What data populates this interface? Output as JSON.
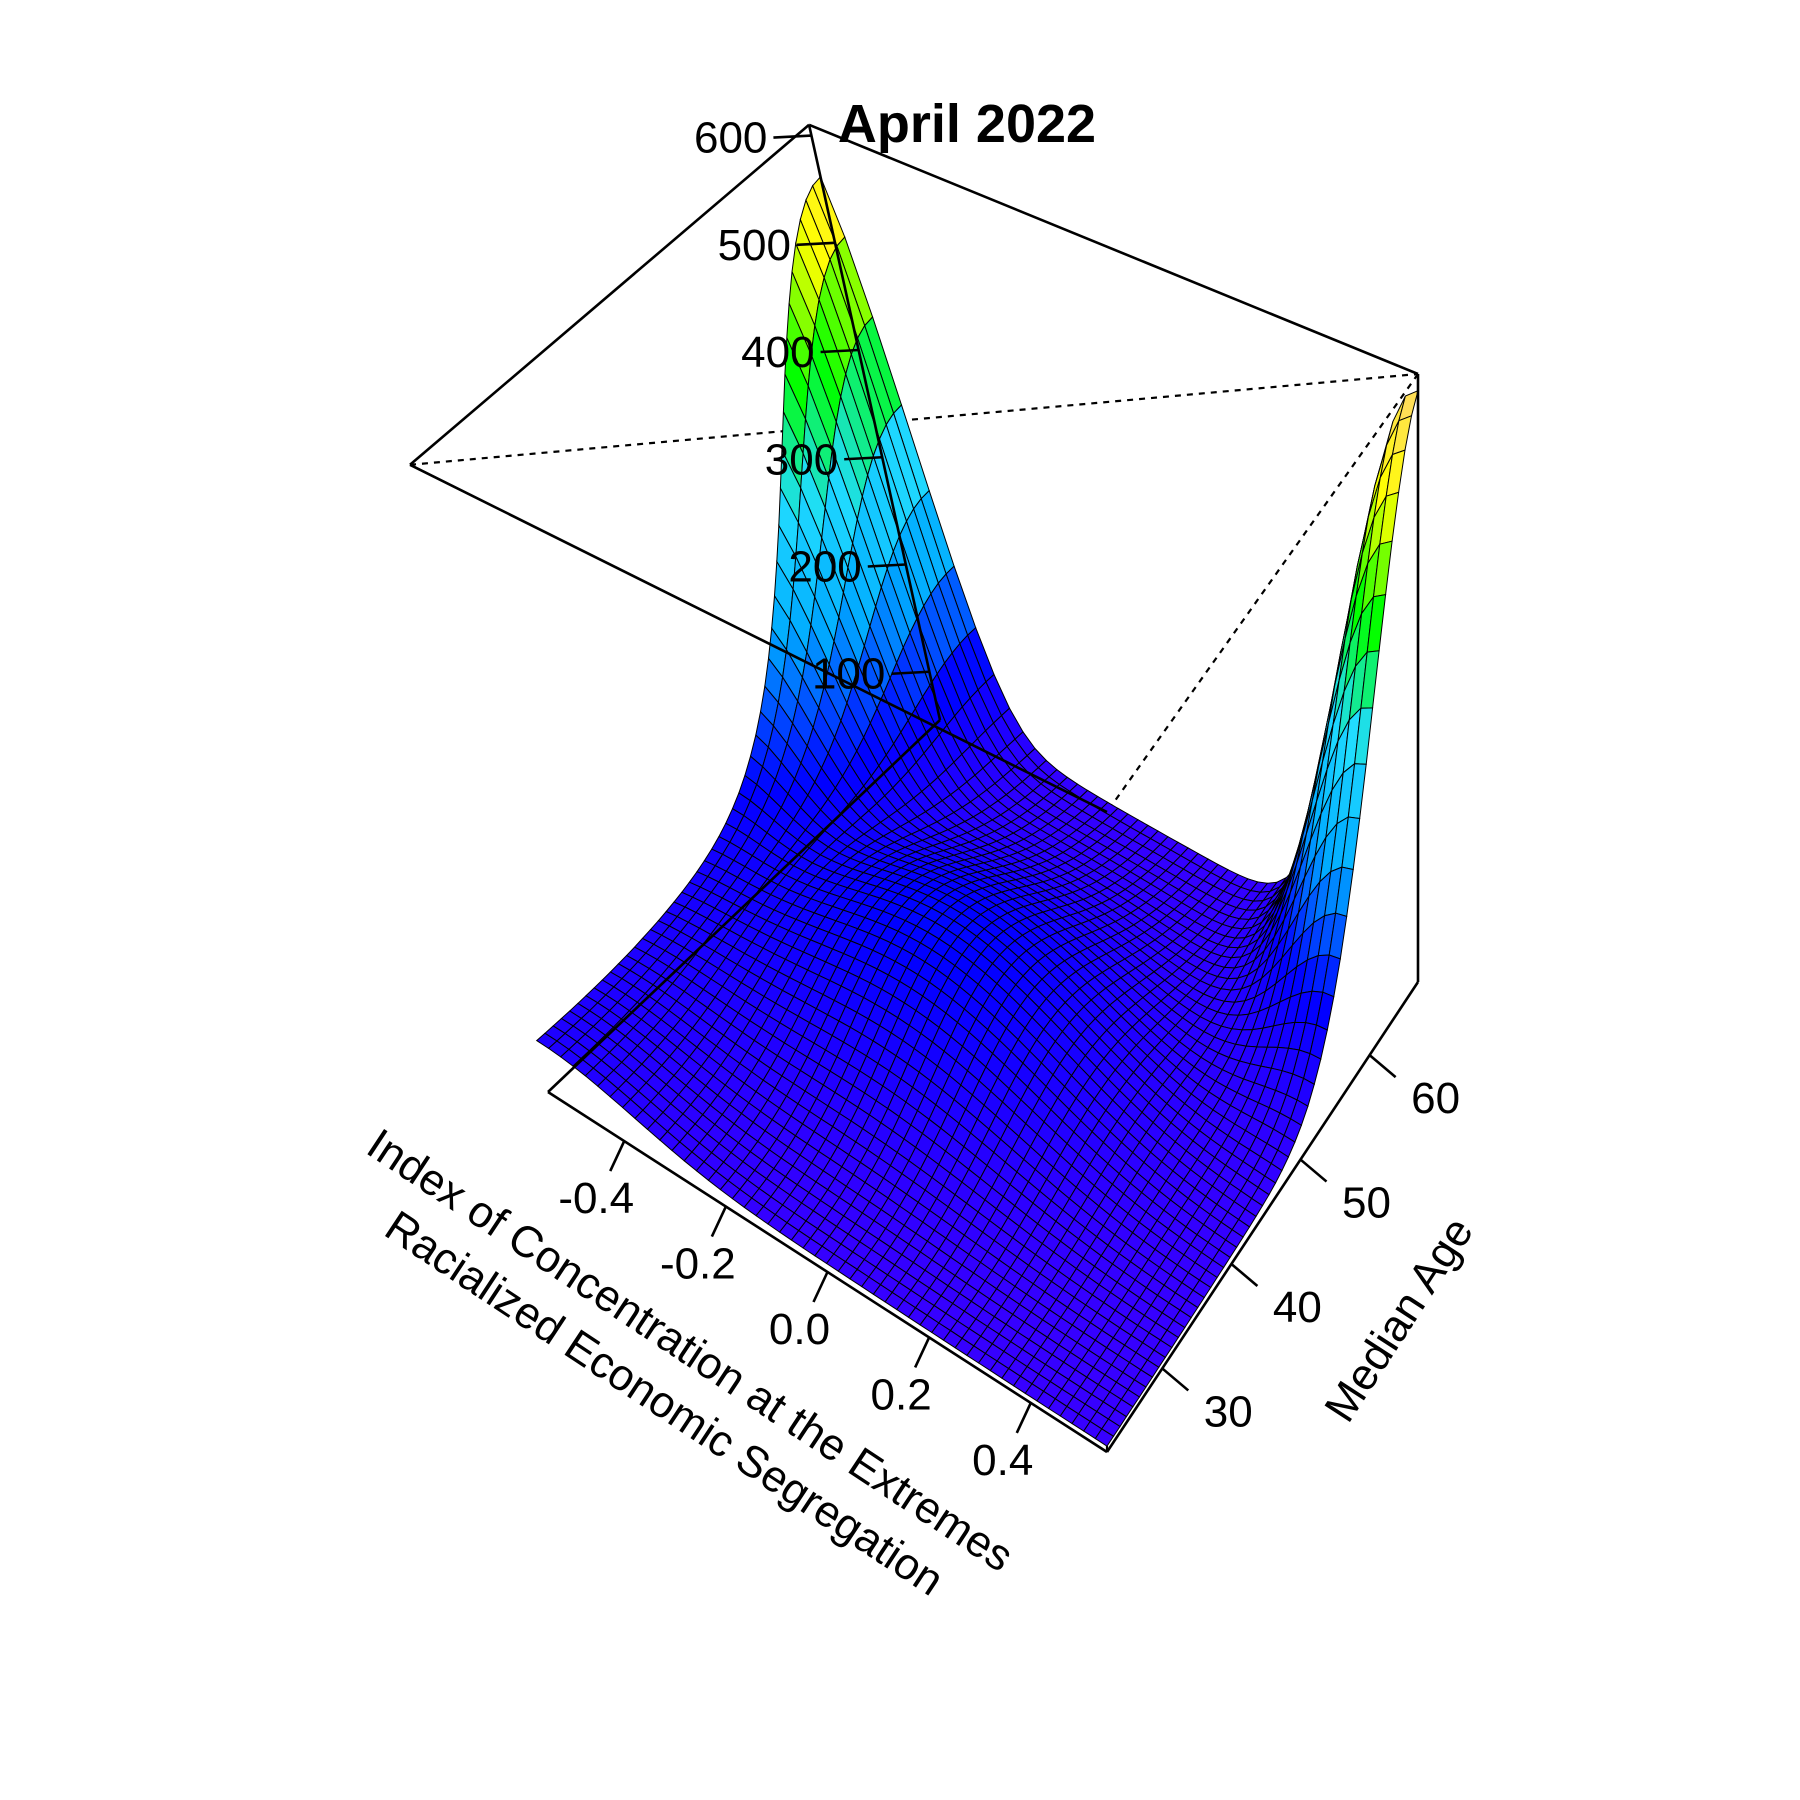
{
  "chart_data": {
    "type": "surface",
    "title": "April 2022",
    "x_axis": {
      "label_line1": "Index of Concentration at the Extremes",
      "label_line2": "Racialized Economic Segregation",
      "range": [
        -0.55,
        0.55
      ],
      "ticks": [
        -0.4,
        -0.2,
        0.0,
        0.2,
        0.4
      ],
      "tick_labels": [
        "-0.4",
        "-0.2",
        "0.0",
        "0.2",
        "0.4"
      ]
    },
    "y_axis": {
      "label": "Median Age",
      "range": [
        22,
        67
      ],
      "ticks": [
        30,
        40,
        50,
        60
      ],
      "tick_labels": [
        "30",
        "40",
        "50",
        "60"
      ]
    },
    "z_axis": {
      "label": "",
      "range": [
        55,
        610
      ],
      "ticks": [
        100,
        200,
        300,
        400,
        500,
        600
      ],
      "tick_labels": [
        "100",
        "200",
        "300",
        "400",
        "500",
        "600"
      ]
    },
    "colormap": [
      "#3a00ff",
      "#0000ff",
      "#00aaff",
      "#21dcff",
      "#00ff00",
      "#ffff00",
      "#ffd27a"
    ],
    "surface_peaks": [
      {
        "x": -0.55,
        "y": 67,
        "z": 570
      },
      {
        "x": 0.55,
        "y": 67,
        "z": 610
      }
    ],
    "surface_minimum": {
      "x": 0.55,
      "y": 22,
      "z": 60
    }
  }
}
